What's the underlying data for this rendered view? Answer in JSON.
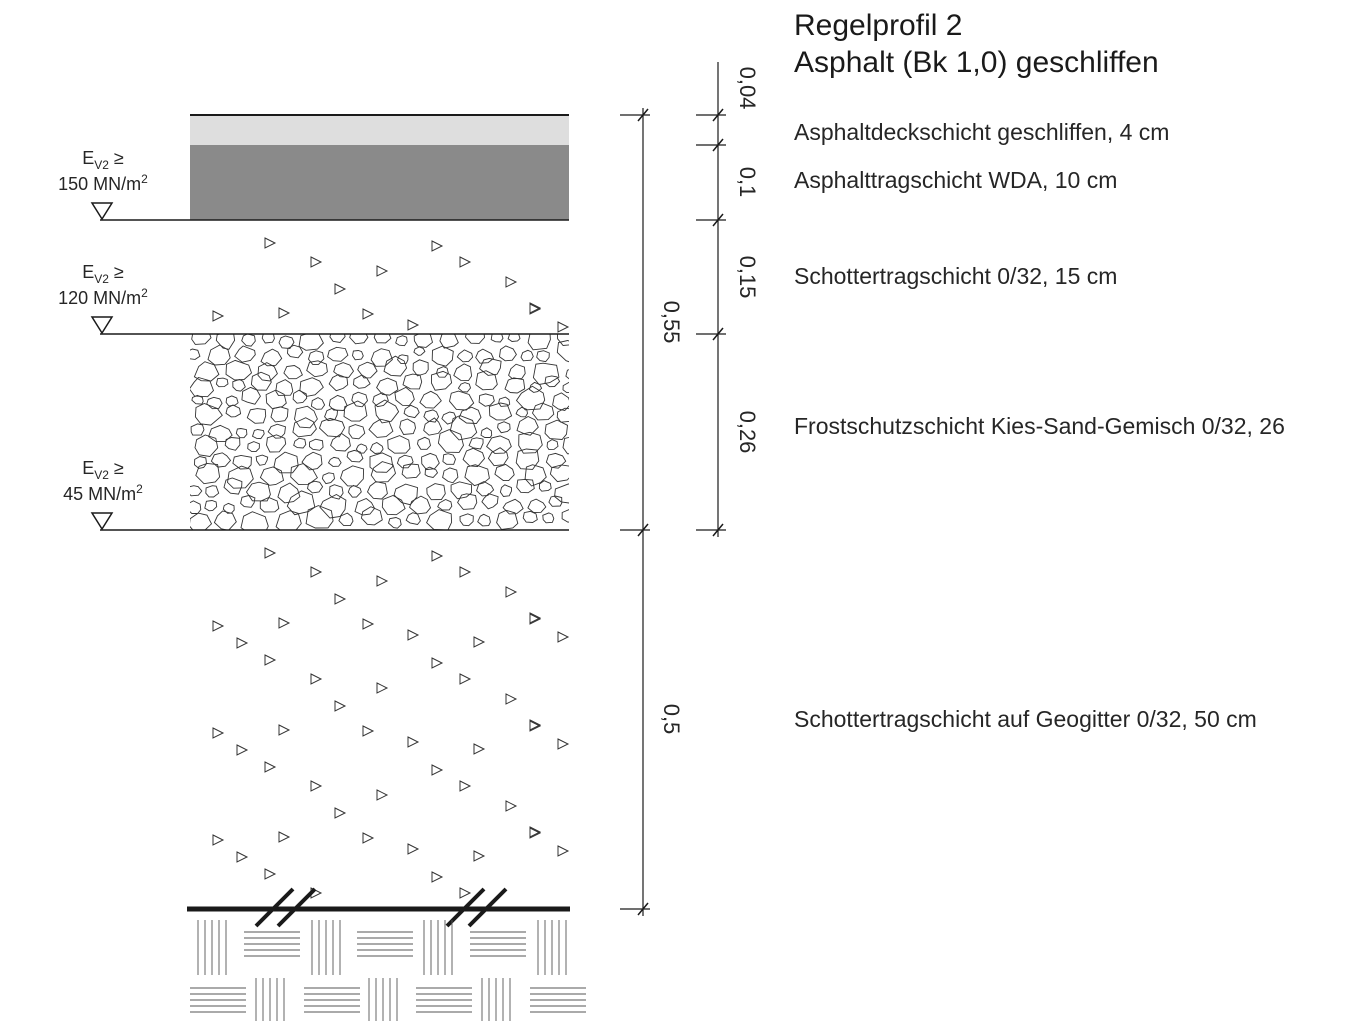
{
  "title": {
    "line1": "Regelprofil 2",
    "line2": "Asphalt (Bk 1,0) geschliffen"
  },
  "layers": [
    {
      "label": "Asphaltdeckschicht geschliffen, 4 cm",
      "dimension": "0,04",
      "color": "#dedede"
    },
    {
      "label": "Asphalttragschicht WDA, 10 cm",
      "dimension": "0,1",
      "color": "#8a8a8a"
    },
    {
      "label": "Schottertragschicht 0/32, 15 cm",
      "dimension": "0,15",
      "hatch": "triangle-gravel"
    },
    {
      "label": "Frostschutzschicht Kies-Sand-Gemisch 0/32, 26",
      "dimension": "0,26",
      "hatch": "cobble"
    },
    {
      "label": "Schottertragschicht auf Geogitter  0/32, 50 cm",
      "dimension": "0,5",
      "hatch": "triangle-gravel"
    }
  ],
  "total_dimension": "0,55",
  "bearing_values": [
    {
      "prefix": "E",
      "sub": "V2",
      "relation": "≥",
      "value": "150 MN/m",
      "sup": "2"
    },
    {
      "prefix": "E",
      "sub": "V2",
      "relation": "≥",
      "value": "120 MN/m",
      "sup": "2"
    },
    {
      "prefix": "E",
      "sub": "V2",
      "relation": "≥",
      "value": "45 MN/m",
      "sup": "2"
    }
  ],
  "icons": {
    "level_marker": "inverted-triangle-icon",
    "geogrid_mark": "geogrid-slash-icon",
    "subsoil": "subsoil-hatch"
  }
}
